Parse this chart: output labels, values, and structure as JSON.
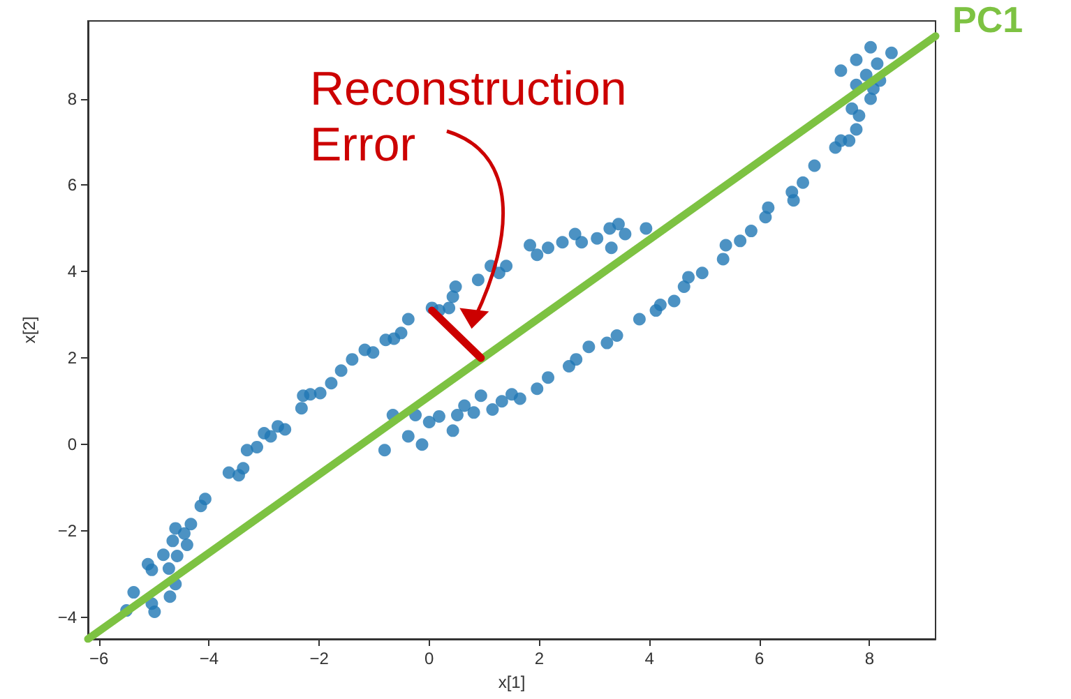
{
  "chart_data": {
    "type": "scatter",
    "xlabel": "x[1]",
    "ylabel": "x[2]",
    "xlim": [
      -6.2,
      9.2
    ],
    "ylim": [
      -4.5,
      9.8
    ],
    "xticks": [
      -6,
      -4,
      -2,
      0,
      2,
      4,
      6,
      8
    ],
    "yticks": [
      -4,
      -2,
      0,
      2,
      4,
      6,
      8
    ],
    "annotations": [
      "Reconstruction Error"
    ],
    "series": [
      {
        "color": "#1f77b4",
        "marker": "circle",
        "x": [
          -5.5,
          -5.37,
          -4.99,
          -5.04,
          -5.11,
          -5.04,
          -4.83,
          -4.73,
          -4.71,
          -4.61,
          -4.66,
          -4.61,
          -4.58,
          -4.45,
          -4.4,
          -4.33,
          -4.15,
          -4.07,
          -3.64,
          -3.46,
          -3.38,
          -3.31,
          -3.13,
          -3,
          -2.88,
          -2.75,
          -2.62,
          -2.32,
          -2.29,
          -2.16,
          -1.98,
          -1.78,
          -1.6,
          -1.4,
          -1.17,
          -1.02,
          -0.79,
          -0.64,
          -0.51,
          -0.38,
          0.05,
          0.18,
          0.36,
          0.43,
          0.48,
          0.89,
          1.12,
          1.27,
          1.4,
          1.83,
          1.96,
          2.16,
          2.42,
          2.65,
          2.77,
          3.05,
          3.28,
          3.44,
          3.56,
          3.31,
          3.94,
          -0.81,
          -0.66,
          -0.38,
          -0.13,
          -0.25,
          0,
          0.18,
          0.43,
          0.51,
          0.64,
          0.81,
          0.94,
          1.15,
          1.32,
          1.5,
          1.65,
          1.96,
          2.16,
          2.54,
          2.67,
          2.9,
          3.23,
          3.41,
          3.82,
          4.12,
          4.2,
          4.45,
          4.63,
          4.71,
          4.96,
          5.34,
          5.39,
          5.65,
          5.85,
          6.11,
          6.16,
          6.59,
          6.62,
          6.79,
          7,
          7.38,
          7.48,
          7.63,
          7.76,
          7.81,
          7.68,
          8.02,
          8.07,
          7.76,
          8.19,
          7.94,
          8.14,
          7.76,
          7.48,
          8.02,
          8.4
        ],
        "values": [
          -3.84,
          -3.42,
          -3.87,
          -3.68,
          -2.77,
          -2.9,
          -2.55,
          -2.87,
          -3.52,
          -3.23,
          -2.23,
          -1.94,
          -2.58,
          -2.06,
          -2.32,
          -1.84,
          -1.42,
          -1.26,
          -0.65,
          -0.71,
          -0.55,
          -0.13,
          -0.06,
          0.26,
          0.19,
          0.42,
          0.35,
          0.84,
          1.13,
          1.16,
          1.19,
          1.42,
          1.71,
          1.97,
          2.19,
          2.13,
          2.42,
          2.45,
          2.58,
          2.9,
          3.16,
          3.1,
          3.16,
          3.42,
          3.65,
          3.81,
          4.13,
          3.97,
          4.13,
          4.61,
          4.39,
          4.55,
          4.68,
          4.87,
          4.68,
          4.77,
          5,
          5.1,
          4.87,
          4.55,
          5,
          -0.13,
          0.68,
          0.19,
          0,
          0.68,
          0.52,
          0.65,
          0.32,
          0.68,
          0.9,
          0.74,
          1.13,
          0.81,
          1,
          1.16,
          1.06,
          1.29,
          1.55,
          1.81,
          1.97,
          2.26,
          2.35,
          2.52,
          2.9,
          3.1,
          3.23,
          3.32,
          3.65,
          3.87,
          3.97,
          4.29,
          4.61,
          4.71,
          4.94,
          5.26,
          5.48,
          5.84,
          5.65,
          6.06,
          6.45,
          6.87,
          7.03,
          7.03,
          7.29,
          7.61,
          7.77,
          8,
          8.23,
          8.32,
          8.42,
          8.55,
          8.81,
          8.9,
          8.65,
          9.19,
          9.06
        ]
      },
      {
        "type": "line",
        "name": "PC1",
        "color": "#7dc242",
        "marker": "none",
        "x": [
          -6.2,
          9.2
        ],
        "values": [
          -4.5,
          9.45
        ]
      },
      {
        "type": "line",
        "color": "#cc0000",
        "marker": "none",
        "x": [
          0.05,
          0.94
        ],
        "values": [
          3.1,
          2.0
        ]
      }
    ]
  }
}
